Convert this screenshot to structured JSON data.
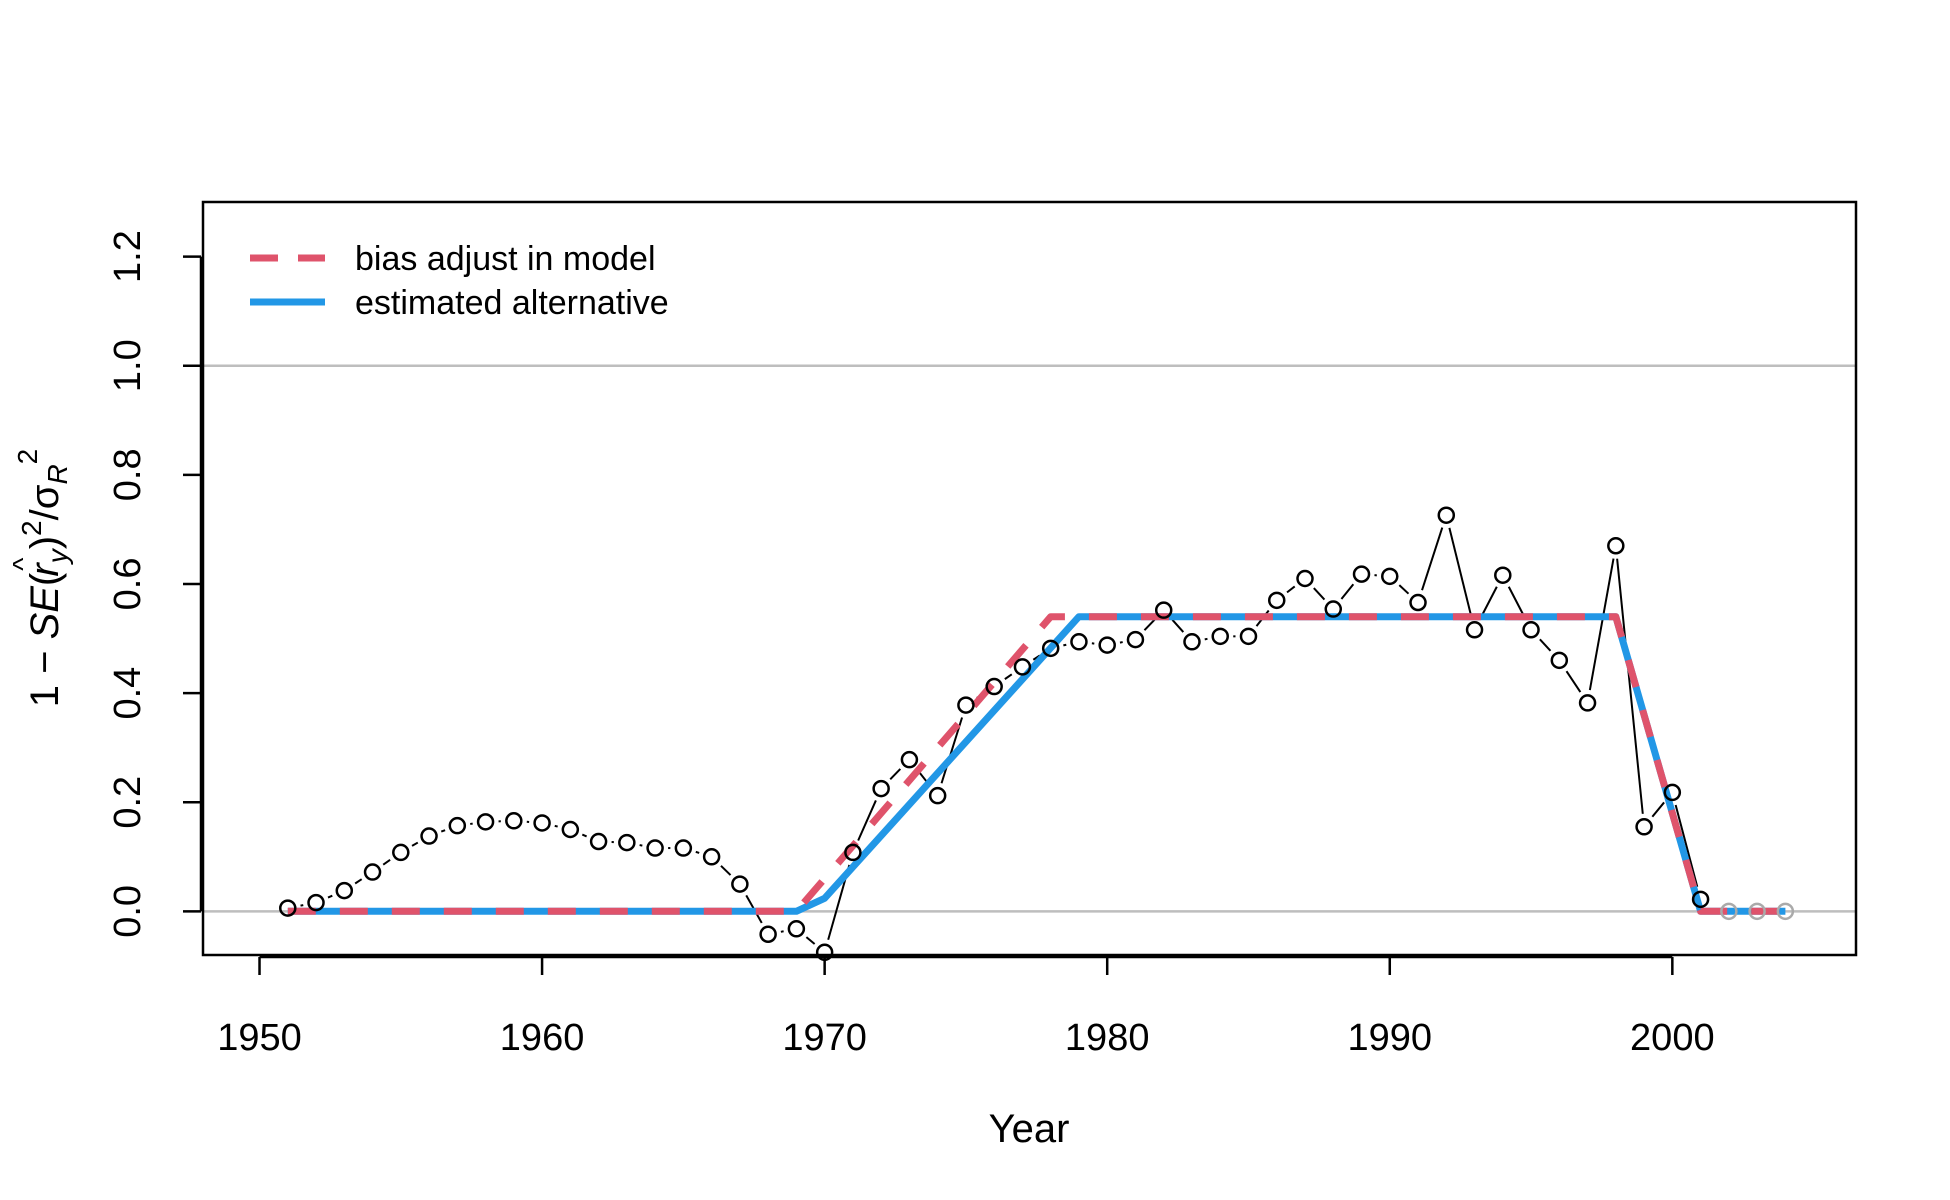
{
  "chart_data": {
    "type": "line",
    "title": "",
    "xlabel": "Year",
    "ylabel": {
      "prefix": "1 − ",
      "se": "SE",
      "open": "(",
      "r": "r",
      "hat": "^",
      "sub_y": "y",
      "close": ")",
      "sup2": "2",
      "slash": "/",
      "sigma": "σ",
      "sub_R": "R",
      "sup2b": "2"
    },
    "xlim": [
      1948,
      2006.5
    ],
    "ylim": [
      -0.08,
      1.3
    ],
    "x_ticks": [
      1950,
      1960,
      1970,
      1980,
      1990,
      2000
    ],
    "y_ticks": [
      0.0,
      0.2,
      0.4,
      0.6,
      0.8,
      1.0,
      1.2
    ],
    "y_tick_labels": [
      "0.0",
      "0.2",
      "0.4",
      "0.6",
      "0.8",
      "1.0",
      "1.2"
    ],
    "reference_lines": [
      0.0,
      1.0
    ],
    "grid": false,
    "legend": {
      "placement": "top-left",
      "entries": [
        {
          "label": "bias adjust in model",
          "color": "#df536b",
          "style": "dashed"
        },
        {
          "label": "estimated alternative",
          "color": "#2297e6",
          "style": "solid"
        }
      ]
    },
    "colors": {
      "points": "#000000",
      "forecast_points": "#aaaaaa",
      "reference": "#bebebe",
      "bias_adjust": "#df536b",
      "alternative": "#2297e6"
    },
    "series": [
      {
        "name": "",
        "kind": "points_with_line",
        "x": [
          1951,
          1952,
          1953,
          1954,
          1955,
          1956,
          1957,
          1958,
          1959,
          1960,
          1961,
          1962,
          1963,
          1964,
          1965,
          1966,
          1967,
          1968,
          1969,
          1970,
          1971,
          1972,
          1973,
          1974,
          1975,
          1976,
          1977,
          1978,
          1979,
          1980,
          1981,
          1982,
          1983,
          1984,
          1985,
          1986,
          1987,
          1988,
          1989,
          1990,
          1991,
          1992,
          1993,
          1994,
          1995,
          1996,
          1997,
          1998,
          1999,
          2000,
          2001
        ],
        "y": [
          0.006,
          0.016,
          0.038,
          0.072,
          0.108,
          0.138,
          0.157,
          0.164,
          0.166,
          0.162,
          0.15,
          0.128,
          0.126,
          0.116,
          0.116,
          0.1,
          0.05,
          -0.042,
          -0.032,
          -0.075,
          0.108,
          0.225,
          0.278,
          0.212,
          0.378,
          0.412,
          0.448,
          0.482,
          0.494,
          0.488,
          0.498,
          0.552,
          0.494,
          0.504,
          0.504,
          0.57,
          0.61,
          0.554,
          0.618,
          0.614,
          0.566,
          0.726,
          0.516,
          0.616,
          0.516,
          0.46,
          0.382,
          0.67,
          0.155,
          0.218,
          0.022
        ]
      },
      {
        "name": "",
        "kind": "forecast_points",
        "x": [
          2002,
          2003,
          2004
        ],
        "y": [
          0.0,
          0.0,
          0.0
        ]
      },
      {
        "name": "bias adjust in model",
        "kind": "ramp",
        "x": [
          1951,
          1969,
          1978,
          1998,
          2001,
          2004
        ],
        "y": [
          0.0,
          0.0,
          0.54,
          0.54,
          0.0,
          0.0
        ]
      },
      {
        "name": "estimated alternative",
        "kind": "ramp",
        "x": [
          1951,
          1969,
          1970,
          1979,
          1998,
          2001,
          2004
        ],
        "y": [
          0.0,
          0.0,
          0.024,
          0.54,
          0.54,
          0.0,
          0.0
        ]
      }
    ]
  }
}
